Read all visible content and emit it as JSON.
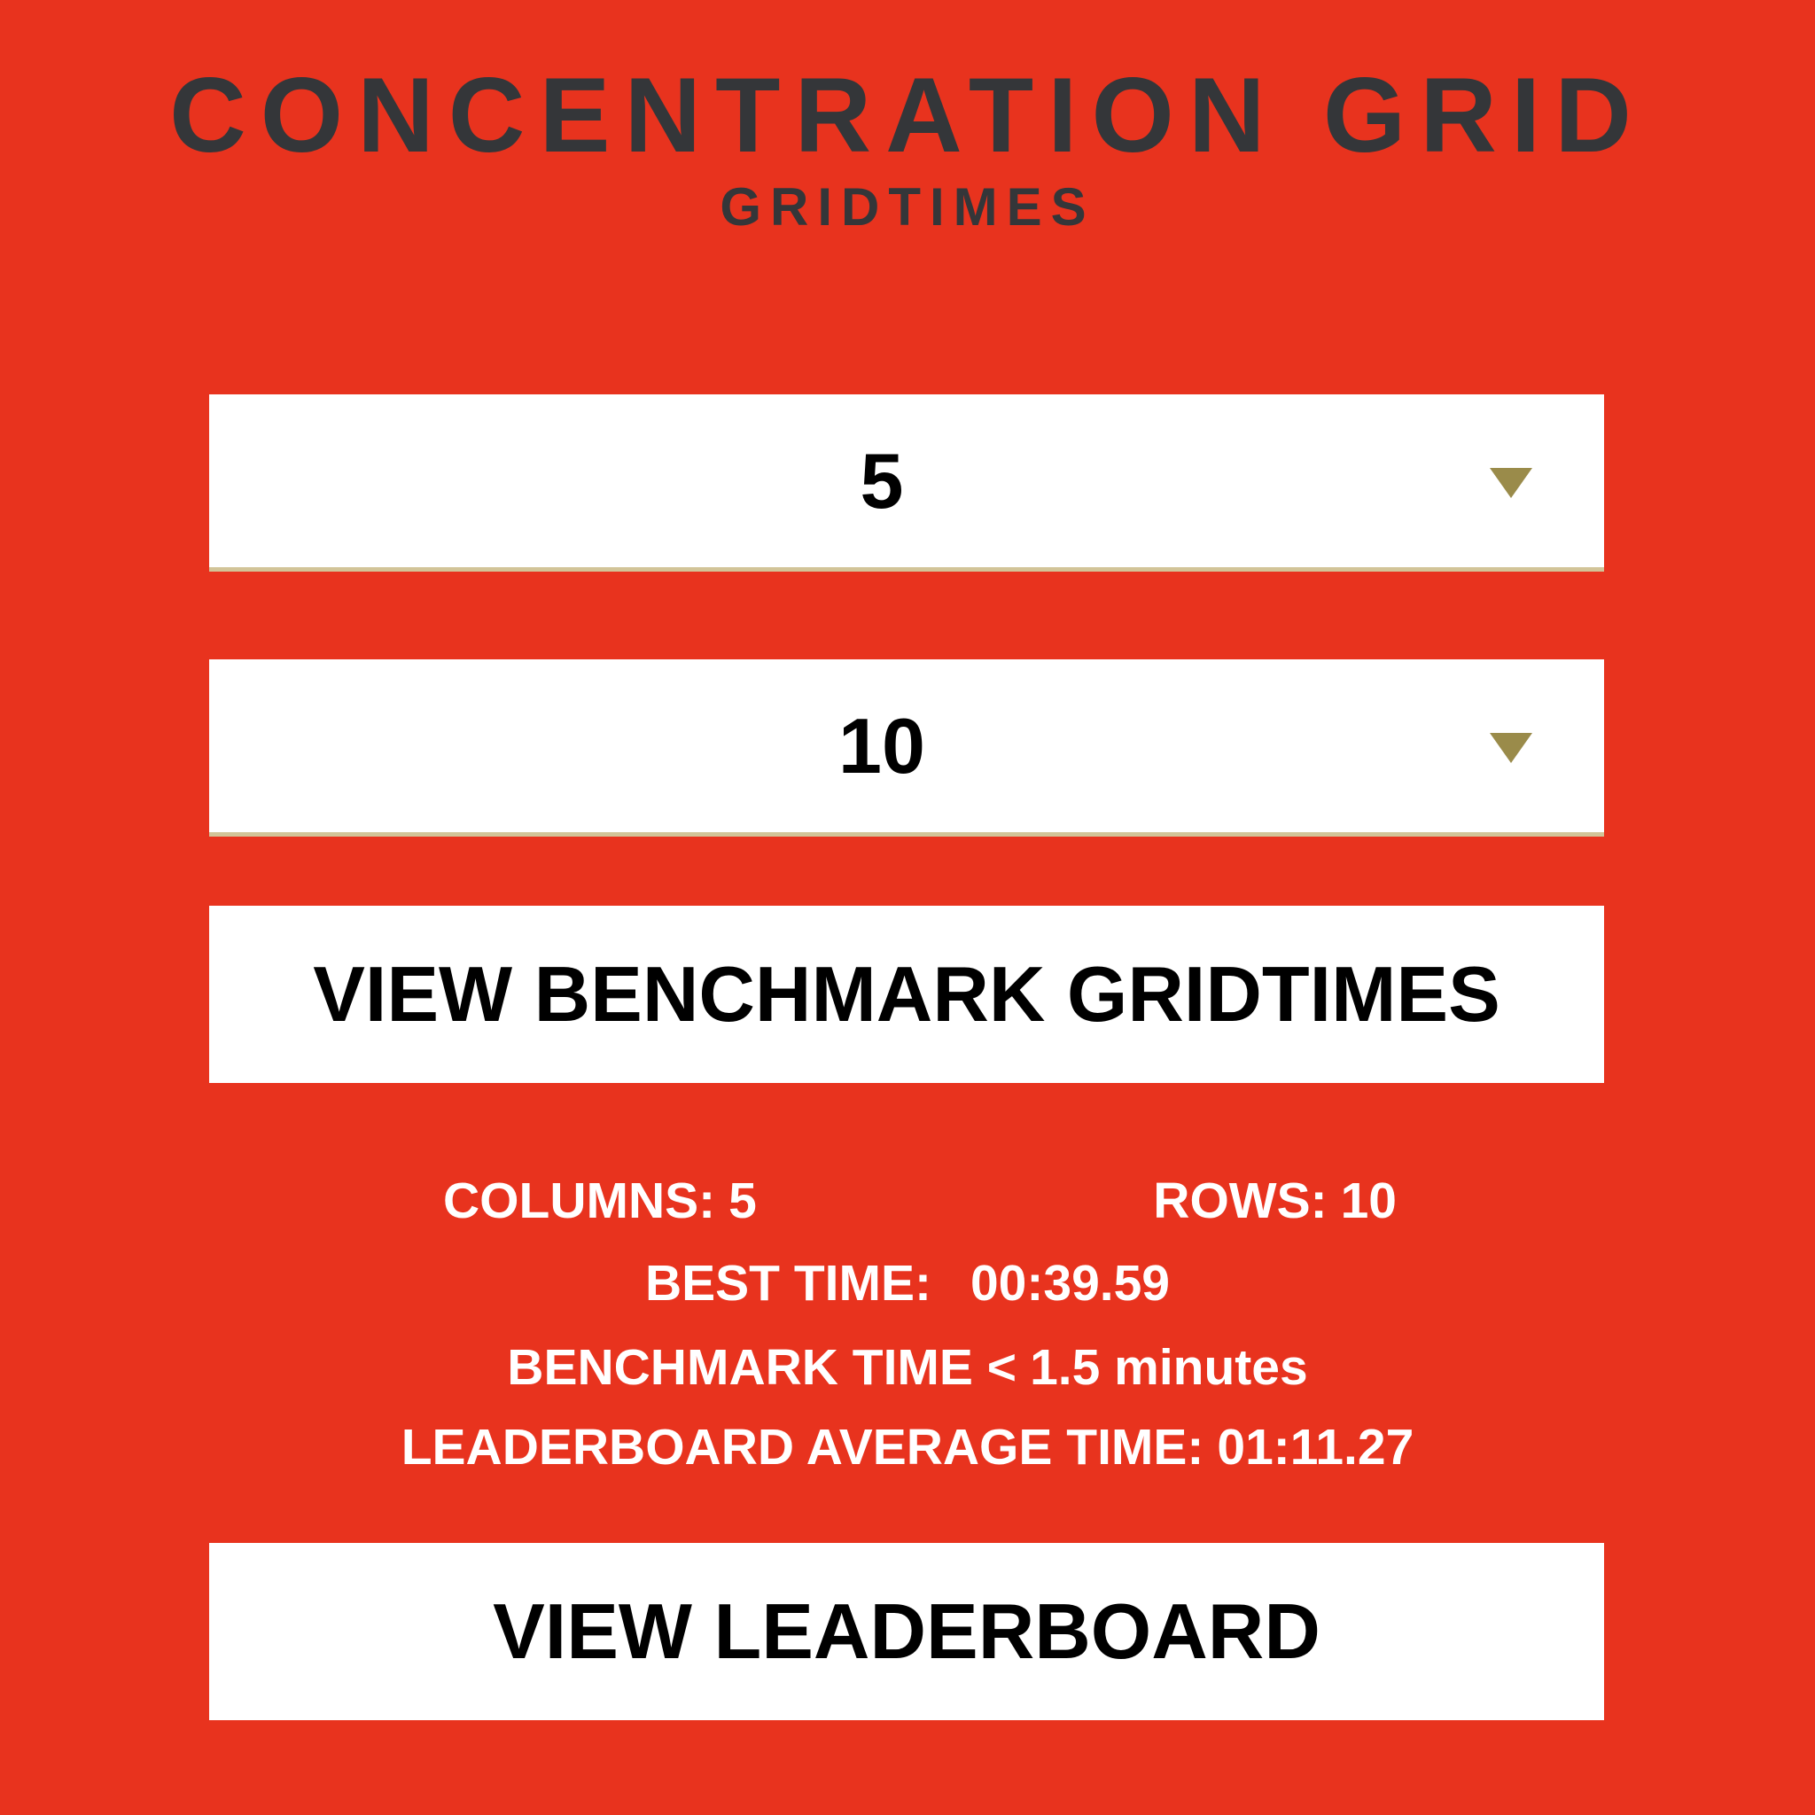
{
  "header": {
    "title": "CONCENTRATION GRID",
    "subtitle": "GRIDTIMES"
  },
  "selects": {
    "columns": {
      "value": "5"
    },
    "rows": {
      "value": "10"
    }
  },
  "buttons": {
    "view_benchmark": "VIEW BENCHMARK GRIDTIMES",
    "view_leaderboard": "VIEW LEADERBOARD"
  },
  "stats": {
    "columns_label": "COLUMNS:",
    "columns_value": "5",
    "rows_label": "ROWS:",
    "rows_value": "10",
    "best_time_label": "BEST TIME:",
    "best_time_value": "00:39.59",
    "benchmark_time_label": "BENCHMARK TIME <",
    "benchmark_time_value": "1.5 minutes",
    "leaderboard_avg_label": "LEADERBOARD AVERAGE TIME:",
    "leaderboard_avg_value": "01:11.27"
  },
  "icons": {
    "dropdown_caret": "triangle-down"
  },
  "colors": {
    "background": "#E8331E",
    "title_text": "#343639",
    "panel": "#FFFFFF",
    "button_text": "#000000",
    "stats_text": "#FFFFFF",
    "caret": "#9A8B4A",
    "select_underline": "#D2C498"
  }
}
